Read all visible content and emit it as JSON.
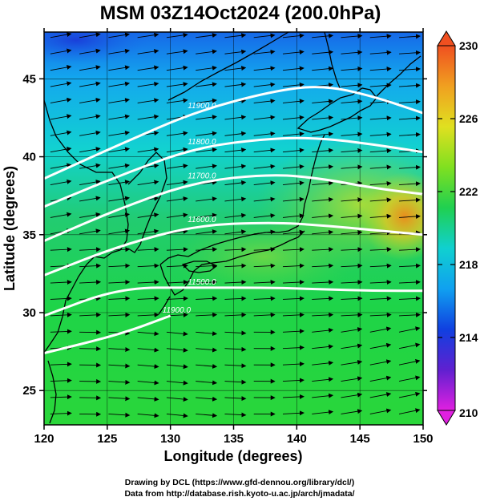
{
  "title": "MSM 03Z14Oct2024 (200.0hPa)",
  "x_axis": {
    "label": "Longitude (degrees)",
    "range": [
      120,
      150
    ],
    "ticks": [
      "120",
      "125",
      "130",
      "135",
      "140",
      "145",
      "150"
    ]
  },
  "y_axis": {
    "label": "Latitude  (degrees)",
    "range": [
      22.8,
      48.0
    ],
    "ticks": [
      "25",
      "30",
      "35",
      "40",
      "45"
    ]
  },
  "colorbar": {
    "range": [
      210,
      230
    ],
    "ticks": [
      "210",
      "214",
      "218",
      "222",
      "226",
      "230"
    ],
    "colors": [
      "#e020e0",
      "#6020d0",
      "#1040e0",
      "#10a0f0",
      "#10d0d0",
      "#20d050",
      "#80e020",
      "#e0e020",
      "#f0a020",
      "#f05020"
    ]
  },
  "contours": [
    {
      "label": "11900.0",
      "lat_at": [
        [
          120,
          38.6
        ],
        [
          126,
          40.8
        ],
        [
          132,
          42.9
        ],
        [
          138,
          44.2
        ],
        [
          142,
          44.6
        ],
        [
          146,
          43.9
        ],
        [
          150,
          42.8
        ]
      ]
    },
    {
      "label": "11800.0",
      "lat_at": [
        [
          120,
          36.8
        ],
        [
          126,
          38.8
        ],
        [
          132,
          40.6
        ],
        [
          138,
          41.2
        ],
        [
          142,
          41.2
        ],
        [
          146,
          40.8
        ],
        [
          150,
          40.3
        ]
      ]
    },
    {
      "label": "11700.0",
      "lat_at": [
        [
          120,
          34.6
        ],
        [
          126,
          36.7
        ],
        [
          132,
          38.4
        ],
        [
          138,
          38.9
        ],
        [
          142,
          38.6
        ],
        [
          146,
          38.0
        ],
        [
          150,
          37.6
        ]
      ]
    },
    {
      "label": "11600.0",
      "lat_at": [
        [
          120,
          32.4
        ],
        [
          126,
          34.3
        ],
        [
          132,
          35.6
        ],
        [
          138,
          35.8
        ],
        [
          142,
          35.6
        ],
        [
          146,
          35.3
        ],
        [
          150,
          35.0
        ]
      ]
    },
    {
      "label": "11500.0",
      "lat_at": [
        [
          120,
          29.8
        ],
        [
          126,
          31.6
        ],
        [
          132,
          31.6
        ],
        [
          138,
          31.6
        ],
        [
          142,
          31.5
        ],
        [
          146,
          31.4
        ],
        [
          150,
          31.4
        ]
      ]
    },
    {
      "label": "11900.0",
      "lat_at": [
        [
          120,
          27.4
        ],
        [
          126,
          28.6
        ],
        [
          130,
          29.8
        ]
      ]
    }
  ],
  "credits": [
    "Drawing by DCL (https://www.gfd-dennou.org/library/dcl/)",
    "Data from http://database.rish.kyoto-u.ac.jp/arch/jmadata/"
  ]
}
